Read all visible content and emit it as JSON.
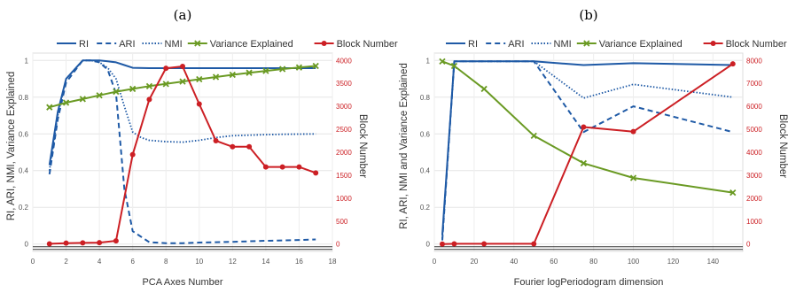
{
  "chart_data": [
    {
      "type": "line",
      "panel_label": "(a)",
      "xlabel": "PCA Axes Number",
      "ylabel": "RI, ARI, NMI, Variance Explained",
      "y2label": "Block Number",
      "xlim": [
        0,
        18
      ],
      "xticks": [
        0,
        2,
        4,
        6,
        8,
        10,
        12,
        14,
        16,
        18
      ],
      "ylim": [
        -0.04,
        1.04
      ],
      "yticks": [
        0,
        0.2,
        0.4,
        0.6,
        0.8,
        1
      ],
      "ytick_labels": [
        "0",
        "0.2",
        "0.4",
        "0.6",
        "0.8",
        "1"
      ],
      "y2lim": [
        -160,
        4160
      ],
      "y2ticks": [
        0,
        500,
        1000,
        1500,
        2000,
        2500,
        3000,
        3500,
        4000
      ],
      "grid": true,
      "legend_position": "top",
      "series": [
        {
          "name": "RI",
          "axis": "left",
          "style": "solid",
          "color": "#1f5aa6",
          "x": [
            1,
            1.5,
            2,
            2.5,
            3,
            3.5,
            4,
            4.5,
            5,
            5.5,
            6,
            7,
            8,
            9,
            10,
            11,
            12,
            13,
            14,
            15,
            16,
            17
          ],
          "y": [
            0.43,
            0.72,
            0.9,
            0.95,
            1.0,
            1.0,
            1.0,
            0.995,
            0.99,
            0.975,
            0.96,
            0.958,
            0.958,
            0.958,
            0.958,
            0.958,
            0.958,
            0.958,
            0.958,
            0.958,
            0.958,
            0.958
          ]
        },
        {
          "name": "ARI",
          "axis": "left",
          "style": "dashed",
          "color": "#1f5aa6",
          "x": [
            1,
            1.5,
            2,
            2.5,
            3,
            3.5,
            4,
            4.5,
            5,
            5.5,
            6,
            7,
            8,
            9,
            10,
            11,
            12,
            13,
            14,
            15,
            16,
            17
          ],
          "y": [
            0.38,
            0.68,
            0.88,
            0.94,
            1.0,
            1.0,
            0.99,
            0.95,
            0.82,
            0.3,
            0.07,
            0.01,
            0.005,
            0.005,
            0.008,
            0.01,
            0.012,
            0.015,
            0.018,
            0.02,
            0.022,
            0.025
          ]
        },
        {
          "name": "NMI",
          "axis": "left",
          "style": "dotted",
          "color": "#1f5aa6",
          "x": [
            1,
            1.5,
            2,
            2.5,
            3,
            3.5,
            4,
            4.5,
            5,
            5.5,
            6,
            6.5,
            7,
            8,
            9,
            10,
            11,
            12,
            13,
            14,
            15,
            16,
            17
          ],
          "y": [
            0.4,
            0.7,
            0.9,
            0.95,
            1.0,
            1.0,
            0.99,
            0.96,
            0.9,
            0.75,
            0.61,
            0.58,
            0.565,
            0.558,
            0.555,
            0.565,
            0.58,
            0.59,
            0.593,
            0.596,
            0.598,
            0.599,
            0.6
          ]
        },
        {
          "name": "Variance Explained",
          "axis": "left",
          "style": "solid",
          "color": "#6a9a23",
          "marker": "x",
          "x": [
            1,
            2,
            3,
            4,
            5,
            6,
            7,
            8,
            9,
            10,
            11,
            12,
            13,
            14,
            15,
            16,
            17
          ],
          "y": [
            0.745,
            0.77,
            0.79,
            0.81,
            0.83,
            0.845,
            0.86,
            0.872,
            0.885,
            0.898,
            0.91,
            0.922,
            0.933,
            0.943,
            0.953,
            0.962,
            0.97
          ]
        },
        {
          "name": "Block Number",
          "axis": "right",
          "style": "solid",
          "color": "#cc1f24",
          "marker": "circle",
          "x": [
            1,
            2,
            3,
            4,
            5,
            6,
            7,
            8,
            9,
            10,
            11,
            12,
            13,
            14,
            15,
            16,
            17
          ],
          "y": [
            5,
            20,
            25,
            30,
            70,
            1950,
            3150,
            3830,
            3870,
            3050,
            2250,
            2120,
            2120,
            1680,
            1680,
            1680,
            1550
          ]
        }
      ]
    },
    {
      "type": "line",
      "panel_label": "(b)",
      "xlabel": "Fourier logPeriodogram dimension",
      "ylabel": "RI, ARI, NMI and Variance Explained",
      "y2label": "Block Number",
      "xlim": [
        0,
        155
      ],
      "xticks": [
        0,
        20,
        40,
        60,
        80,
        100,
        120,
        140
      ],
      "ylim": [
        -0.04,
        1.04
      ],
      "yticks": [
        0,
        0.2,
        0.4,
        0.6,
        0.8,
        1
      ],
      "ytick_labels": [
        "0",
        "0.2",
        "0.4",
        "0.6",
        "0.8",
        "1"
      ],
      "y2lim": [
        -320,
        8320
      ],
      "y2ticks": [
        0,
        1000,
        2000,
        3000,
        4000,
        5000,
        6000,
        7000,
        8000
      ],
      "grid": true,
      "legend_position": "top",
      "series": [
        {
          "name": "RI",
          "axis": "left",
          "style": "solid",
          "color": "#1f5aa6",
          "x": [
            4,
            10,
            25,
            50,
            75,
            100,
            150
          ],
          "y": [
            0.05,
            0.995,
            0.995,
            0.995,
            0.975,
            0.985,
            0.975
          ]
        },
        {
          "name": "ARI",
          "axis": "left",
          "style": "dashed",
          "color": "#1f5aa6",
          "x": [
            4,
            10,
            25,
            50,
            75,
            100,
            150
          ],
          "y": [
            0.02,
            0.995,
            0.995,
            0.995,
            0.61,
            0.75,
            0.61
          ]
        },
        {
          "name": "NMI",
          "axis": "left",
          "style": "dotted",
          "color": "#1f5aa6",
          "x": [
            4,
            10,
            25,
            50,
            75,
            100,
            150
          ],
          "y": [
            0.03,
            0.995,
            0.995,
            0.995,
            0.795,
            0.87,
            0.8
          ]
        },
        {
          "name": "Variance Explained",
          "axis": "left",
          "style": "solid",
          "color": "#6a9a23",
          "marker": "x",
          "x": [
            4,
            10,
            25,
            50,
            75,
            100,
            150
          ],
          "y": [
            0.995,
            0.97,
            0.845,
            0.59,
            0.44,
            0.36,
            0.28
          ]
        },
        {
          "name": "Block Number",
          "axis": "right",
          "style": "solid",
          "color": "#cc1f24",
          "marker": "circle",
          "x": [
            4,
            10,
            25,
            50,
            75,
            100,
            150
          ],
          "y": [
            0,
            10,
            10,
            10,
            5100,
            4900,
            7850
          ]
        }
      ]
    }
  ]
}
